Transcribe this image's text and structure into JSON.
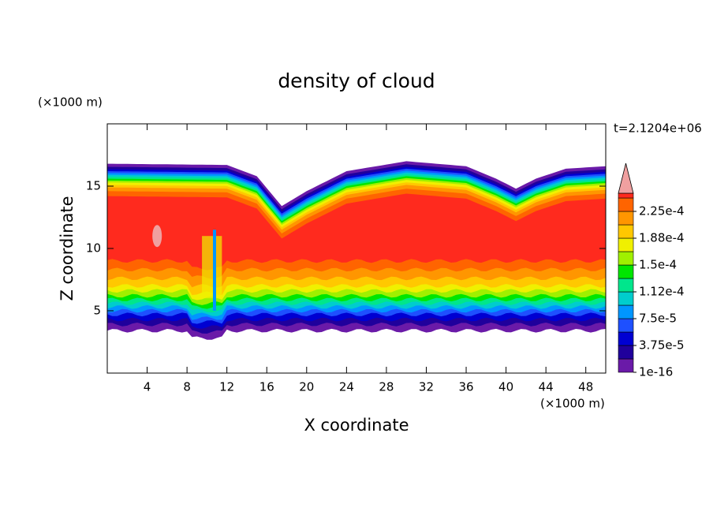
{
  "chart_data": {
    "type": "contour",
    "title": "density of cloud",
    "x_label": "X coordinate",
    "y_label": "Z coordinate",
    "x_units": "(×1000 m)",
    "y_units": "(×1000 m)",
    "time_label": "t=2.1204e+06",
    "xlim": [
      0,
      50
    ],
    "ylim": [
      0,
      20
    ],
    "xticks": [
      4,
      8,
      12,
      16,
      20,
      24,
      28,
      32,
      36,
      40,
      44,
      48
    ],
    "yticks": [
      5,
      10,
      15
    ],
    "colorbar": {
      "ticks": [
        {
          "value": 1e-16,
          "label": "1e-16"
        },
        {
          "value": 3.75e-05,
          "label": "3.75e-5"
        },
        {
          "value": 7.5e-05,
          "label": "7.5e-5"
        },
        {
          "value": 0.000112,
          "label": "1.12e-4"
        },
        {
          "value": 0.00015,
          "label": "1.5e-4"
        },
        {
          "value": 0.000188,
          "label": "1.88e-4"
        },
        {
          "value": 0.000225,
          "label": "2.25e-4"
        }
      ],
      "colors": [
        "#6a1aa8",
        "#20009c",
        "#0000d2",
        "#1e50ff",
        "#0096ff",
        "#00cdcd",
        "#00e68c",
        "#00e600",
        "#a0f000",
        "#f0f000",
        "#ffc800",
        "#ff9600",
        "#ff6400",
        "#ff2a1e"
      ],
      "extend_color": "#f0a0a0"
    }
  }
}
